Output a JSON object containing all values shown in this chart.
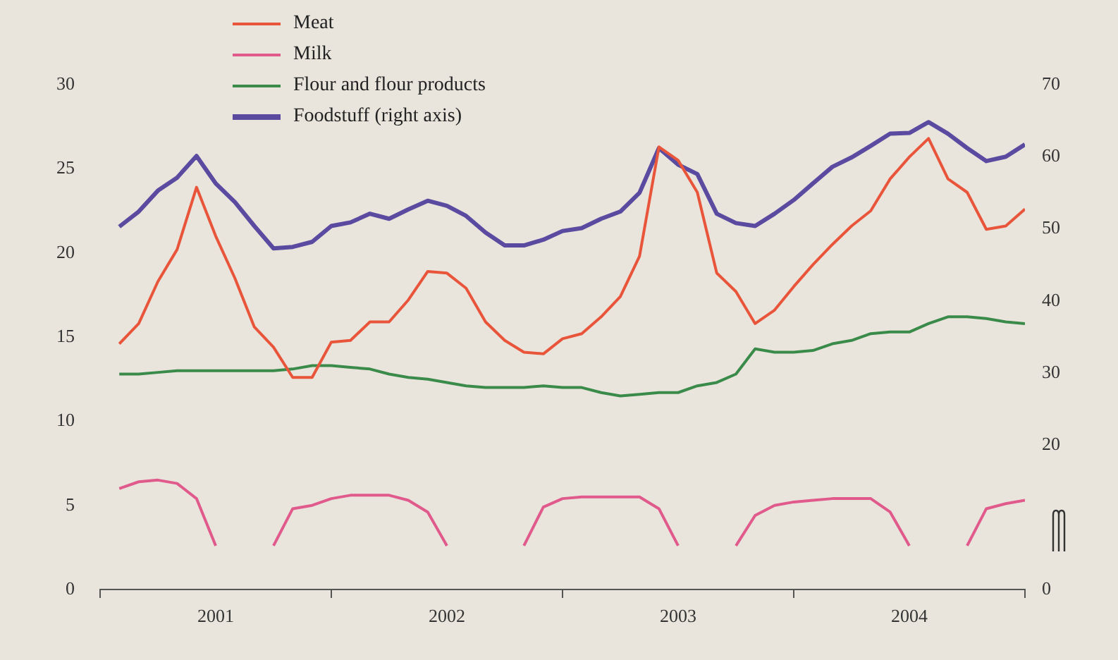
{
  "chart_data": {
    "type": "line",
    "x": [
      2001.083,
      2001.167,
      2001.25,
      2001.333,
      2001.417,
      2001.5,
      2001.583,
      2001.667,
      2001.75,
      2001.833,
      2001.917,
      2002,
      2002.083,
      2002.167,
      2002.25,
      2002.333,
      2002.417,
      2002.5,
      2002.583,
      2002.667,
      2002.75,
      2002.833,
      2002.917,
      2003,
      2003.083,
      2003.167,
      2003.25,
      2003.333,
      2003.417,
      2003.5,
      2003.583,
      2003.667,
      2003.75,
      2003.833,
      2003.917,
      2004,
      2004.083,
      2004.167,
      2004.25,
      2004.333,
      2004.417,
      2004.5,
      2004.583,
      2004.667,
      2004.75,
      2004.833,
      2004.917,
      2005
    ],
    "series": [
      {
        "name": "Meat",
        "color": "#e8553a",
        "values": [
          14.6,
          15.8,
          18.3,
          20.2,
          23.9,
          21.0,
          18.5,
          15.6,
          14.4,
          12.6,
          12.6,
          14.7,
          14.8,
          15.9,
          15.9,
          17.2,
          18.9,
          18.8,
          17.9,
          15.9,
          14.8,
          14.1,
          14.0,
          14.9,
          15.2,
          16.2,
          17.4,
          19.8,
          26.3,
          25.5,
          23.6,
          18.8,
          17.7,
          15.8,
          16.6,
          18.0,
          19.3,
          20.5,
          21.6,
          22.5,
          24.4,
          25.7,
          26.8,
          24.4,
          23.6,
          21.4,
          21.6,
          22.6
        ]
      },
      {
        "name": "Milk",
        "color": "#e05a8c",
        "values": [
          6.0,
          6.4,
          6.5,
          6.3,
          5.4,
          2.6,
          null,
          null,
          2.6,
          4.8,
          5.0,
          5.4,
          5.6,
          5.6,
          5.6,
          5.3,
          4.6,
          2.6,
          null,
          null,
          null,
          2.6,
          4.9,
          5.4,
          5.5,
          5.5,
          5.5,
          5.5,
          4.8,
          2.6,
          null,
          null,
          2.6,
          4.4,
          5.0,
          5.2,
          5.3,
          5.4,
          5.4,
          5.4,
          4.6,
          2.6,
          null,
          null,
          2.6,
          4.8,
          5.1,
          5.3
        ]
      },
      {
        "name": "Flour and flour products",
        "color": "#3a8a4a",
        "values": [
          12.8,
          12.8,
          12.9,
          13.0,
          13.0,
          13.0,
          13.0,
          13.0,
          13.0,
          13.1,
          13.3,
          13.3,
          13.2,
          13.1,
          12.8,
          12.6,
          12.5,
          12.3,
          12.1,
          12.0,
          12.0,
          12.0,
          12.1,
          12.0,
          12.0,
          11.7,
          11.5,
          11.6,
          11.7,
          11.7,
          12.1,
          12.3,
          12.8,
          14.3,
          14.1,
          14.1,
          14.2,
          14.6,
          14.8,
          15.2,
          15.3,
          15.3,
          15.8,
          16.2,
          16.2,
          16.1,
          15.9,
          15.8
        ]
      },
      {
        "name": "Foodstuff (right axis)",
        "color": "#5a4aa0",
        "axis": "y2",
        "values": [
          50.3,
          52.4,
          55.3,
          57.1,
          60.1,
          56.3,
          53.7,
          50.4,
          47.3,
          47.5,
          48.2,
          50.4,
          50.9,
          52.1,
          51.4,
          52.7,
          53.9,
          53.2,
          51.8,
          49.5,
          47.7,
          47.7,
          48.5,
          49.7,
          50.1,
          51.4,
          52.4,
          55.0,
          61.2,
          58.9,
          57.6,
          52.1,
          50.8,
          50.4,
          52.1,
          54.0,
          56.3,
          58.6,
          59.9,
          61.5,
          63.2,
          63.3,
          64.8,
          63.2,
          61.2,
          59.4,
          60.0,
          61.7
        ]
      }
    ],
    "xlim": [
      2001,
      2005
    ],
    "xticks": [
      {
        "value": 2001,
        "label": null
      },
      {
        "value": 2001.5,
        "label": "2001"
      },
      {
        "value": 2002,
        "label": null
      },
      {
        "value": 2002.5,
        "label": "2002"
      },
      {
        "value": 2003,
        "label": null
      },
      {
        "value": 2003.5,
        "label": "2003"
      },
      {
        "value": 2004,
        "label": null
      },
      {
        "value": 2004.5,
        "label": "2004"
      },
      {
        "value": 2005,
        "label": null
      }
    ],
    "ylim": [
      0,
      30
    ],
    "yticks": [
      0,
      5,
      10,
      15,
      20,
      25,
      30
    ],
    "y2lim": [
      0,
      70
    ],
    "y2ticks": [
      0,
      20,
      30,
      40,
      50,
      60,
      70
    ],
    "grid": false,
    "legend": "top left",
    "marker": "none",
    "line_style": "solid"
  }
}
